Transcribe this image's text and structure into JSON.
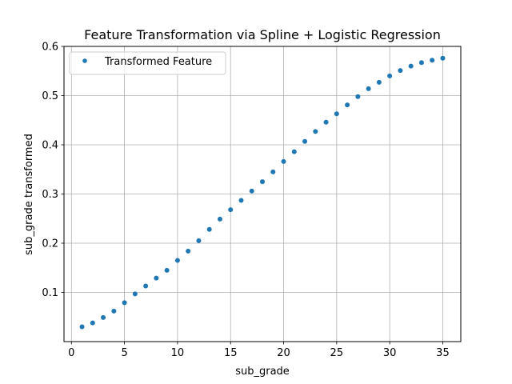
{
  "chart_data": {
    "type": "scatter",
    "title": "Feature Transformation via Spline + Logistic Regression",
    "xlabel": "sub_grade",
    "ylabel": "sub_grade transformed",
    "xlim": [
      -0.7,
      36.7
    ],
    "ylim": [
      0.0,
      0.6
    ],
    "xticks": [
      0,
      5,
      10,
      15,
      20,
      25,
      30,
      35
    ],
    "yticks": [
      0.1,
      0.2,
      0.3,
      0.4,
      0.5,
      0.6
    ],
    "grid": true,
    "legend_position": "top-left",
    "series": [
      {
        "name": "Transformed Feature",
        "color": "#1f77b4",
        "x": [
          1,
          2,
          3,
          4,
          5,
          6,
          7,
          8,
          9,
          10,
          11,
          12,
          13,
          14,
          15,
          16,
          17,
          18,
          19,
          20,
          21,
          22,
          23,
          24,
          25,
          26,
          27,
          28,
          29,
          30,
          31,
          32,
          33,
          34,
          35
        ],
        "y": [
          0.03,
          0.038,
          0.049,
          0.062,
          0.079,
          0.097,
          0.113,
          0.129,
          0.145,
          0.165,
          0.184,
          0.205,
          0.228,
          0.249,
          0.268,
          0.287,
          0.306,
          0.325,
          0.345,
          0.366,
          0.386,
          0.407,
          0.427,
          0.446,
          0.463,
          0.481,
          0.498,
          0.514,
          0.527,
          0.54,
          0.551,
          0.56,
          0.567,
          0.572,
          0.576
        ]
      }
    ]
  }
}
